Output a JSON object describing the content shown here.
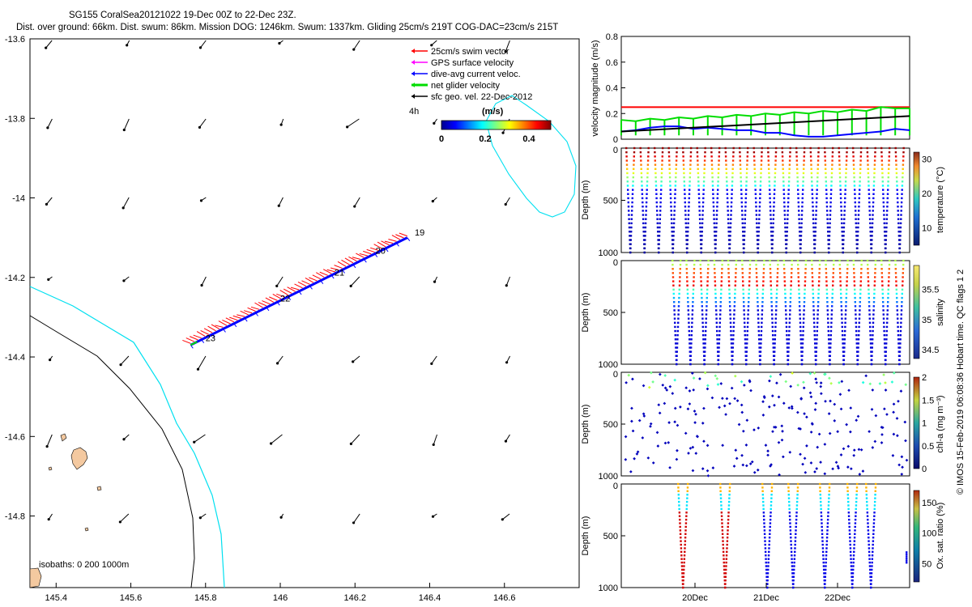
{
  "header": {
    "line1": "SG155 CoralSea20121022 19-Dec 00Z to 22-Dec 23Z.",
    "line2": "Dist. over ground: 66km. Dist. swum: 86km. Mission DOG: 1246km. Swum: 1337km. Gliding 25cm/s 219T COG-DAC=23cm/s 215T"
  },
  "credit": "© IMOS 15-Feb-2019 06:08:36 Hobart time. QC flags 1 2",
  "chart_data": [
    {
      "id": "map",
      "type": "scatter",
      "xlim": [
        145.33,
        146.8
      ],
      "ylim": [
        -14.98,
        -13.6
      ],
      "xticks": [
        "145.4",
        "145.6",
        "145.8",
        "146",
        "146.2",
        "146.4",
        "146.6"
      ],
      "yticks": [
        "-13.6",
        "-13.8",
        "-14",
        "-14.2",
        "-14.4",
        "-14.6",
        "-14.8"
      ],
      "legend": {
        "placement": "top-right",
        "items": [
          {
            "label": "25cm/s swim vector",
            "color": "#ff0000"
          },
          {
            "label": "GPS surface velocity",
            "color": "#ff00ff"
          },
          {
            "label": "dive-avg current veloc.",
            "color": "#0000ff"
          },
          {
            "label": "net glider velocity",
            "color": "#00dd00"
          },
          {
            "label": "sfc geo. vel. 22-Dec-2012",
            "color": "#000000"
          }
        ],
        "scale_label": "4h"
      },
      "colorbar": {
        "title": "(m/s)",
        "ticks": [
          "0",
          "0.2",
          "0.4"
        ],
        "range": [
          0,
          0.5
        ]
      },
      "isobath_label": "isobaths: 0   200   1000m",
      "track": {
        "start": [
          146.34,
          -14.1
        ],
        "end": [
          145.76,
          -14.37
        ]
      },
      "day_labels": [
        {
          "text": "19",
          "lon": 146.36,
          "lat": -14.095
        },
        {
          "text": "20",
          "lon": 146.255,
          "lat": -14.14
        },
        {
          "text": "21",
          "lon": 146.145,
          "lat": -14.195
        },
        {
          "text": "22",
          "lon": 146.0,
          "lat": -14.26
        },
        {
          "text": "23",
          "lon": 145.8,
          "lat": -14.36
        }
      ]
    },
    {
      "id": "velocity",
      "type": "line",
      "ylabel": "velocity magnitude (m/s)",
      "ylim": [
        0,
        0.8
      ],
      "yticks": [
        "0",
        "0.2",
        "0.4",
        "0.6",
        "0.8"
      ],
      "series": [
        {
          "color": "#ff0000",
          "values": [
            0.25,
            0.25
          ]
        },
        {
          "color": "#00dd00",
          "values": [
            0.15,
            0.14,
            0.16,
            0.15,
            0.17,
            0.16,
            0.18,
            0.17,
            0.19,
            0.18,
            0.2,
            0.19,
            0.21,
            0.2,
            0.22,
            0.21,
            0.23,
            0.22,
            0.25,
            0.24,
            0.24
          ]
        },
        {
          "color": "#0000ff",
          "values": [
            0.06,
            0.07,
            0.09,
            0.1,
            0.1,
            0.08,
            0.09,
            0.08,
            0.07,
            0.07,
            0.05,
            0.05,
            0.03,
            0.02,
            0.02,
            0.03,
            0.04,
            0.05,
            0.06,
            0.08,
            0.07
          ]
        },
        {
          "color": "#000000",
          "values": [
            0.06,
            0.18
          ]
        }
      ]
    },
    {
      "id": "temperature",
      "type": "scatter",
      "ylabel": "Depth (m)",
      "yticks": [
        "0",
        "500",
        "1000"
      ],
      "ylim": [
        0,
        1000
      ],
      "colorbar": {
        "label": "temperature (°C)",
        "ticks": [
          "10",
          "20",
          "30"
        ],
        "range": [
          5,
          32
        ]
      },
      "dive_count": 20
    },
    {
      "id": "salinity",
      "type": "scatter",
      "ylabel": "Depth (m)",
      "yticks": [
        "0",
        "500",
        "1000"
      ],
      "ylim": [
        0,
        1000
      ],
      "colorbar": {
        "label": "salinity",
        "ticks": [
          "34.5",
          "35",
          "35.5"
        ],
        "range": [
          34.35,
          35.9
        ]
      },
      "dive_count": 17
    },
    {
      "id": "chla",
      "type": "scatter",
      "ylabel": "Depth (m)",
      "yticks": [
        "0",
        "500",
        "1000"
      ],
      "ylim": [
        0,
        1000
      ],
      "colorbar": {
        "label": "chl-a (mg m⁻³)",
        "ticks": [
          "0",
          "0.5",
          "1",
          "1.5",
          "2"
        ],
        "range": [
          0,
          2
        ]
      },
      "dive_count": 20
    },
    {
      "id": "oxygen",
      "type": "scatter",
      "ylabel": "Depth (m)",
      "yticks": [
        "0",
        "500",
        "1000"
      ],
      "ylim": [
        0,
        1000
      ],
      "xticks": [
        "20Dec",
        "21Dec",
        "22Dec"
      ],
      "colorbar": {
        "label": "Ox. sat. ratio (%)",
        "ticks": [
          "50",
          "100",
          "150"
        ],
        "range": [
          20,
          170
        ]
      }
    }
  ]
}
